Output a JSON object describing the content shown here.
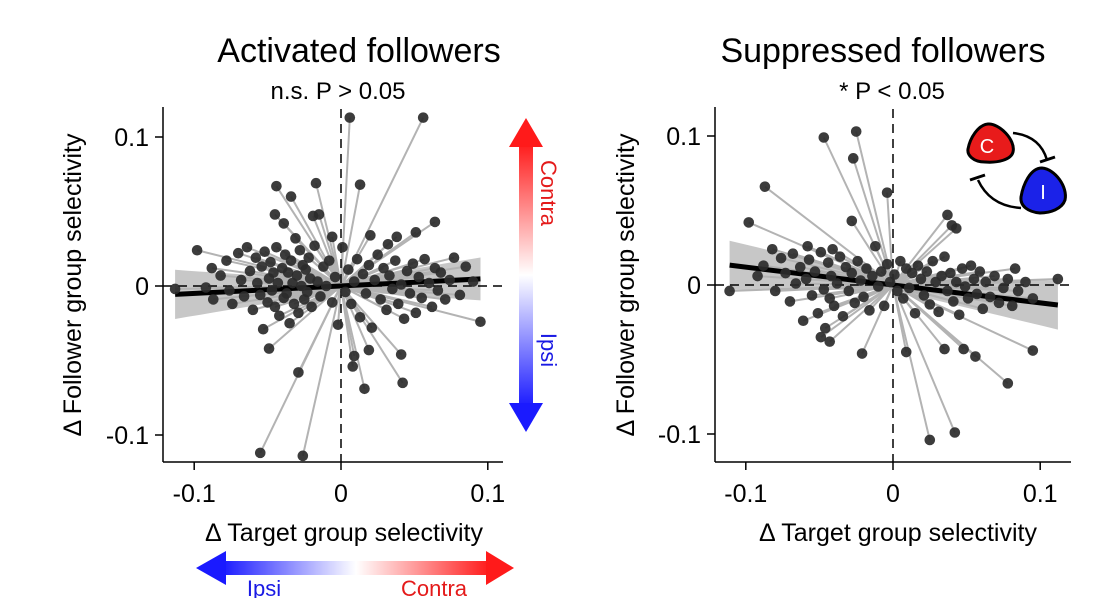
{
  "chart_data": [
    {
      "type": "scatter",
      "title": "Activated followers",
      "subtitle": "n.s. P > 0.05",
      "xlabel": "Δ Target group selectivity",
      "ylabel": "Δ Follower group selectivity",
      "xlim": [
        -0.12,
        0.11
      ],
      "ylim": [
        -0.118,
        0.118
      ],
      "xticks": [
        -0.1,
        0,
        0.1
      ],
      "xtick_labels": [
        "-0.1",
        "0",
        "0.1"
      ],
      "yticks": [
        -0.1,
        0,
        0.1
      ],
      "ytick_labels": [
        "-0.1",
        "0",
        "0.1"
      ],
      "fit": {
        "slope": 0.05,
        "intercept": 0.0,
        "ci": 0.006
      },
      "arrow_labels": {
        "up": "Contra",
        "down": "Ipsi"
      },
      "x_arrow_labels": {
        "left": "Ipsi",
        "right": "Contra"
      },
      "points": [
        [
          -0.113,
          -0.002
        ],
        [
          -0.098,
          0.024
        ],
        [
          -0.092,
          -0.001
        ],
        [
          -0.088,
          0.012
        ],
        [
          -0.087,
          -0.009
        ],
        [
          -0.082,
          0.007
        ],
        [
          -0.078,
          0.017
        ],
        [
          -0.076,
          -0.003
        ],
        [
          -0.074,
          -0.012
        ],
        [
          -0.07,
          0.022
        ],
        [
          -0.068,
          0.004
        ],
        [
          -0.066,
          -0.007
        ],
        [
          -0.064,
          0.026
        ],
        [
          -0.062,
          0.01
        ],
        [
          -0.06,
          -0.016
        ],
        [
          -0.058,
          0.019
        ],
        [
          -0.057,
          0.002
        ],
        [
          -0.055,
          -0.006
        ],
        [
          -0.054,
          0.013
        ],
        [
          -0.053,
          -0.029
        ],
        [
          -0.052,
          0.023
        ],
        [
          -0.05,
          -0.011
        ],
        [
          -0.049,
          0.005
        ],
        [
          -0.048,
          0.016
        ],
        [
          -0.047,
          -0.003
        ],
        [
          -0.046,
          0.009
        ],
        [
          -0.045,
          -0.014
        ],
        [
          -0.044,
          0.026
        ],
        [
          -0.043,
          0.002
        ],
        [
          -0.042,
          -0.02
        ],
        [
          -0.04,
          0.012
        ],
        [
          -0.039,
          -0.008
        ],
        [
          -0.038,
          0.021
        ],
        [
          -0.037,
          -0.005
        ],
        [
          -0.036,
          0.009
        ],
        [
          -0.035,
          -0.025
        ],
        [
          -0.034,
          0.017
        ],
        [
          -0.033,
          0.002
        ],
        [
          -0.032,
          -0.012
        ],
        [
          -0.031,
          0.032
        ],
        [
          -0.03,
          0.007
        ],
        [
          -0.029,
          -0.018
        ],
        [
          -0.028,
          0.024
        ],
        [
          -0.027,
          0.0
        ],
        [
          -0.026,
          0.014
        ],
        [
          -0.025,
          -0.009
        ],
        [
          -0.024,
          0.011
        ],
        [
          -0.023,
          -0.004
        ],
        [
          -0.022,
          0.019
        ],
        [
          -0.021,
          0.005
        ],
        [
          -0.02,
          -0.014
        ],
        [
          -0.018,
          0.027
        ],
        [
          -0.016,
          0.003
        ],
        [
          -0.014,
          -0.007
        ],
        [
          -0.012,
          0.013
        ],
        [
          -0.01,
          0.0
        ],
        [
          -0.008,
          0.017
        ],
        [
          -0.006,
          -0.011
        ],
        [
          -0.004,
          0.006
        ],
        [
          -0.002,
          -0.026
        ],
        [
          0.001,
          0.026
        ],
        [
          0.003,
          -0.004
        ],
        [
          0.005,
          0.011
        ],
        [
          0.007,
          -0.012
        ],
        [
          0.009,
          0.003
        ],
        [
          0.011,
          0.018
        ],
        [
          0.013,
          -0.021
        ],
        [
          0.015,
          0.008
        ],
        [
          0.017,
          -0.005
        ],
        [
          0.019,
          0.014
        ],
        [
          0.021,
          -0.028
        ],
        [
          0.023,
          0.004
        ],
        [
          0.025,
          0.021
        ],
        [
          0.027,
          -0.009
        ],
        [
          0.029,
          0.012
        ],
        [
          0.031,
          -0.016
        ],
        [
          0.033,
          0.007
        ],
        [
          0.035,
          -0.002
        ],
        [
          0.037,
          0.017
        ],
        [
          0.039,
          -0.012
        ],
        [
          0.041,
          0.001
        ],
        [
          0.043,
          -0.022
        ],
        [
          0.045,
          0.01
        ],
        [
          0.047,
          -0.005
        ],
        [
          0.049,
          0.015
        ],
        [
          0.051,
          -0.018
        ],
        [
          0.053,
          0.006
        ],
        [
          0.055,
          -0.008
        ],
        [
          0.057,
          0.018
        ],
        [
          0.06,
          0.002
        ],
        [
          0.062,
          -0.014
        ],
        [
          0.064,
          0.012
        ],
        [
          0.066,
          -0.003
        ],
        [
          0.068,
          0.009
        ],
        [
          0.071,
          -0.009
        ],
        [
          0.074,
          0.004
        ],
        [
          0.077,
          0.019
        ],
        [
          0.081,
          -0.006
        ],
        [
          0.085,
          0.013
        ],
        [
          0.09,
          0.003
        ],
        [
          0.095,
          -0.024
        ],
        [
          0.02,
          0.034
        ],
        [
          0.038,
          0.033
        ],
        [
          -0.006,
          0.033
        ],
        [
          0.032,
          0.028
        ],
        [
          -0.015,
          0.048
        ],
        [
          -0.045,
          0.048
        ],
        [
          -0.019,
          0.047
        ],
        [
          -0.039,
          0.042
        ],
        [
          0.013,
          0.068
        ],
        [
          -0.034,
          0.06
        ],
        [
          0.064,
          0.043
        ],
        [
          0.051,
          0.036
        ],
        [
          -0.044,
          0.067
        ],
        [
          -0.017,
          0.069
        ],
        [
          0.006,
          0.113
        ],
        [
          0.056,
          0.113
        ],
        [
          -0.049,
          -0.042
        ],
        [
          0.019,
          -0.043
        ],
        [
          0.042,
          -0.065
        ],
        [
          -0.029,
          -0.058
        ],
        [
          0.016,
          -0.069
        ],
        [
          0.041,
          -0.046
        ],
        [
          -0.055,
          -0.112
        ],
        [
          -0.026,
          -0.114
        ],
        [
          0.008,
          -0.054
        ],
        [
          0.009,
          -0.047
        ]
      ]
    },
    {
      "type": "scatter",
      "title": "Suppressed followers",
      "subtitle": "* P < 0.05",
      "xlabel": "Δ Target group selectivity",
      "ylabel": "Δ Follower group selectivity",
      "xlim": [
        -0.12,
        0.11
      ],
      "ylim": [
        -0.118,
        0.118
      ],
      "xticks": [
        -0.1,
        0,
        0.1
      ],
      "xtick_labels": [
        "-0.1",
        "0",
        "0.1"
      ],
      "yticks": [
        -0.1,
        0,
        0.1
      ],
      "ytick_labels": [
        "-0.1",
        "0",
        "0.1"
      ],
      "fit": {
        "slope": -0.12,
        "intercept": 0.0,
        "ci": 0.006
      },
      "inset_labels": {
        "contra": "C",
        "ipsi": "I"
      },
      "points": [
        [
          -0.111,
          -0.004
        ],
        [
          -0.092,
          0.006
        ],
        [
          -0.088,
          0.013
        ],
        [
          -0.082,
          0.024
        ],
        [
          -0.08,
          -0.004
        ],
        [
          -0.076,
          0.018
        ],
        [
          -0.073,
          0.008
        ],
        [
          -0.07,
          -0.011
        ],
        [
          -0.068,
          0.021
        ],
        [
          -0.066,
          0.001
        ],
        [
          -0.063,
          0.012
        ],
        [
          -0.061,
          -0.024
        ],
        [
          -0.059,
          0.004
        ],
        [
          -0.057,
          0.017
        ],
        [
          -0.055,
          -0.007
        ],
        [
          -0.053,
          0.009
        ],
        [
          -0.051,
          -0.019
        ],
        [
          -0.049,
          0.022
        ],
        [
          -0.047,
          -0.003
        ],
        [
          -0.046,
          -0.029
        ],
        [
          -0.044,
          0.015
        ],
        [
          -0.043,
          -0.009
        ],
        [
          -0.042,
          0.006
        ],
        [
          -0.041,
          0.024
        ],
        [
          -0.04,
          -0.014
        ],
        [
          -0.038,
          0.001
        ],
        [
          -0.036,
          0.019
        ],
        [
          -0.034,
          -0.021
        ],
        [
          -0.032,
          0.012
        ],
        [
          -0.03,
          -0.004
        ],
        [
          -0.028,
          0.008
        ],
        [
          -0.026,
          -0.012
        ],
        [
          -0.024,
          0.016
        ],
        [
          -0.022,
          0.003
        ],
        [
          -0.02,
          -0.008
        ],
        [
          -0.018,
          0.011
        ],
        [
          -0.016,
          -0.017
        ],
        [
          -0.014,
          0.006
        ],
        [
          -0.012,
          0.026
        ],
        [
          -0.01,
          -0.001
        ],
        [
          -0.008,
          0.009
        ],
        [
          -0.006,
          -0.014
        ],
        [
          -0.004,
          0.014
        ],
        [
          -0.002,
          0.002
        ],
        [
          0.001,
          0.007
        ],
        [
          0.003,
          -0.004
        ],
        [
          0.005,
          0.016
        ],
        [
          0.007,
          -0.009
        ],
        [
          0.009,
          0.011
        ],
        [
          0.011,
          -0.002
        ],
        [
          0.013,
          0.008
        ],
        [
          0.015,
          -0.019
        ],
        [
          0.017,
          0.013
        ],
        [
          0.019,
          0.004
        ],
        [
          0.021,
          -0.007
        ],
        [
          0.023,
          0.009
        ],
        [
          0.025,
          -0.013
        ],
        [
          0.027,
          0.016
        ],
        [
          0.029,
          0.002
        ],
        [
          0.031,
          -0.018
        ],
        [
          0.033,
          0.006
        ],
        [
          0.035,
          0.019
        ],
        [
          0.037,
          -0.004
        ],
        [
          0.039,
          0.008
        ],
        [
          0.041,
          -0.011
        ],
        [
          0.043,
          0.002
        ],
        [
          0.045,
          -0.02
        ],
        [
          0.047,
          0.011
        ],
        [
          0.049,
          -0.001
        ],
        [
          0.051,
          -0.009
        ],
        [
          0.053,
          0.013
        ],
        [
          0.055,
          0.004
        ],
        [
          0.057,
          -0.006
        ],
        [
          0.059,
          0.009
        ],
        [
          0.061,
          -0.016
        ],
        [
          0.063,
          0.002
        ],
        [
          0.066,
          -0.008
        ],
        [
          0.069,
          0.006
        ],
        [
          0.072,
          -0.012
        ],
        [
          0.075,
          -0.002
        ],
        [
          0.078,
          0.004
        ],
        [
          0.081,
          -0.014
        ],
        [
          0.085,
          -0.004
        ],
        [
          0.09,
          0.002
        ],
        [
          0.095,
          -0.009
        ],
        [
          0.112,
          0.004
        ],
        [
          0.083,
          0.011
        ],
        [
          -0.098,
          0.042
        ],
        [
          -0.087,
          0.066
        ],
        [
          -0.058,
          0.026
        ],
        [
          -0.047,
          0.099
        ],
        [
          -0.025,
          0.103
        ],
        [
          -0.028,
          0.043
        ],
        [
          -0.027,
          0.085
        ],
        [
          -0.004,
          0.062
        ],
        [
          0.037,
          0.047
        ],
        [
          0.04,
          0.04
        ],
        [
          0.043,
          0.038
        ],
        [
          -0.021,
          -0.046
        ],
        [
          0.009,
          -0.045
        ],
        [
          0.035,
          -0.043
        ],
        [
          0.048,
          -0.043
        ],
        [
          0.056,
          -0.048
        ],
        [
          0.078,
          -0.066
        ],
        [
          0.095,
          -0.044
        ],
        [
          0.025,
          -0.104
        ],
        [
          0.042,
          -0.099
        ],
        [
          -0.043,
          -0.038
        ],
        [
          -0.049,
          -0.035
        ]
      ]
    }
  ]
}
